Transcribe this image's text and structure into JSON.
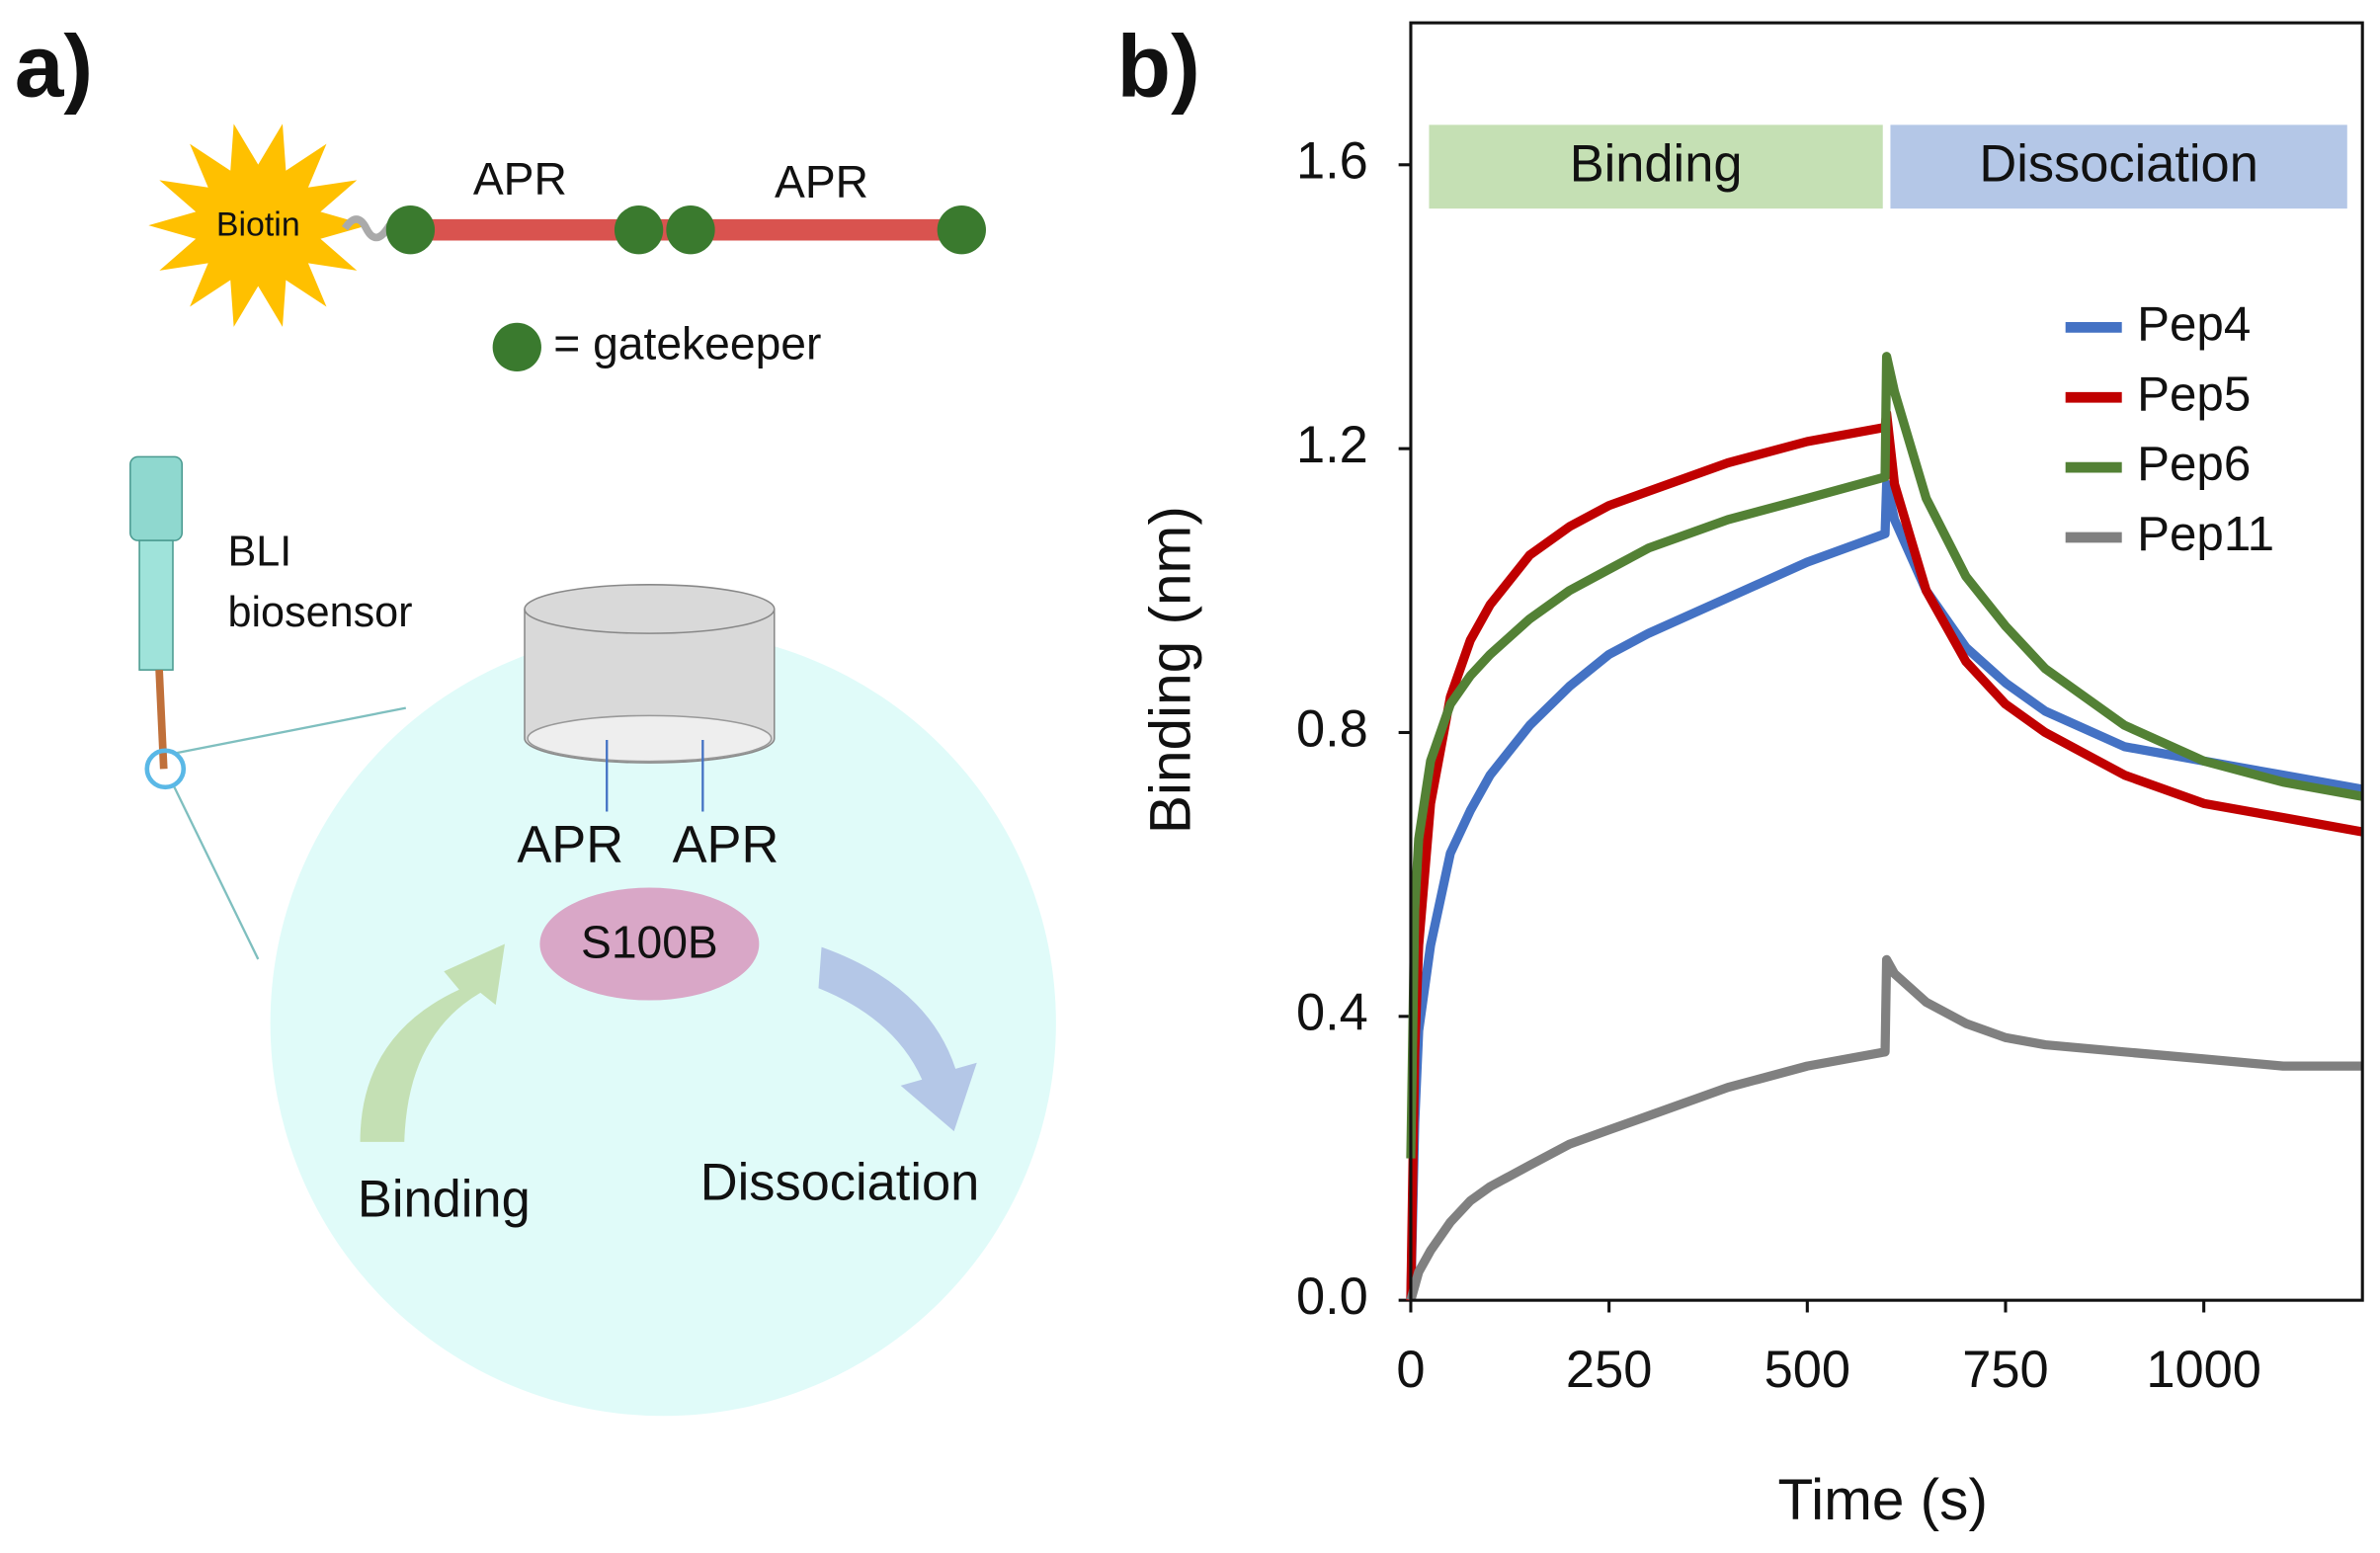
{
  "panel_a": {
    "label": "a)",
    "biotin": "Biotin",
    "apr_top": [
      "APR",
      "APR"
    ],
    "gatekeeper": "= gatekeeper",
    "sensor": [
      "BLI",
      "biosensor"
    ],
    "apr_bottom": [
      "APR",
      "APR"
    ],
    "protein": "S100B",
    "binding": "Binding",
    "dissociation": "Dissociation"
  },
  "chart_data": {
    "type": "line",
    "panel_label": "b)",
    "xlabel": "Time (s)",
    "ylabel": "Binding (nm)",
    "phases": [
      "Binding",
      "Dissociation"
    ],
    "x": [
      0,
      5,
      10,
      25,
      50,
      75,
      100,
      150,
      200,
      250,
      300,
      400,
      500,
      598,
      600,
      610,
      650,
      700,
      750,
      800,
      900,
      1000,
      1100,
      1200
    ],
    "series": [
      {
        "name": "Pep4",
        "color": "#4472c4",
        "values": [
          0,
          0.25,
          0.38,
          0.5,
          0.63,
          0.69,
          0.74,
          0.81,
          0.865,
          0.91,
          0.94,
          0.99,
          1.04,
          1.08,
          1.15,
          1.1,
          1.0,
          0.92,
          0.87,
          0.83,
          0.78,
          0.76,
          0.74,
          0.72
        ]
      },
      {
        "name": "Pep5",
        "color": "#c00000",
        "values": [
          0,
          0.35,
          0.5,
          0.7,
          0.85,
          0.93,
          0.98,
          1.05,
          1.09,
          1.12,
          1.14,
          1.18,
          1.21,
          1.23,
          1.25,
          1.15,
          1.0,
          0.9,
          0.84,
          0.8,
          0.74,
          0.7,
          0.68,
          0.66
        ]
      },
      {
        "name": "Pep6",
        "color": "#538135",
        "values": [
          0.2,
          0.55,
          0.65,
          0.76,
          0.84,
          0.88,
          0.91,
          0.96,
          1.0,
          1.03,
          1.06,
          1.1,
          1.13,
          1.16,
          1.33,
          1.28,
          1.13,
          1.02,
          0.95,
          0.89,
          0.81,
          0.76,
          0.73,
          0.71
        ]
      },
      {
        "name": "Pep11",
        "color": "#808080",
        "values": [
          0,
          0.02,
          0.04,
          0.07,
          0.11,
          0.14,
          0.16,
          0.19,
          0.22,
          0.24,
          0.26,
          0.3,
          0.33,
          0.35,
          0.48,
          0.46,
          0.42,
          0.39,
          0.37,
          0.36,
          0.35,
          0.34,
          0.33,
          0.33
        ]
      }
    ],
    "xlim": [
      0,
      1200
    ],
    "xticks": [
      0,
      250,
      500,
      750,
      1000
    ],
    "ylim": [
      0,
      1.8
    ],
    "yticks": [
      {
        "value": 0,
        "label": "0.0"
      },
      0.4,
      0.8,
      1.2,
      1.6
    ],
    "legend": "upper right"
  }
}
